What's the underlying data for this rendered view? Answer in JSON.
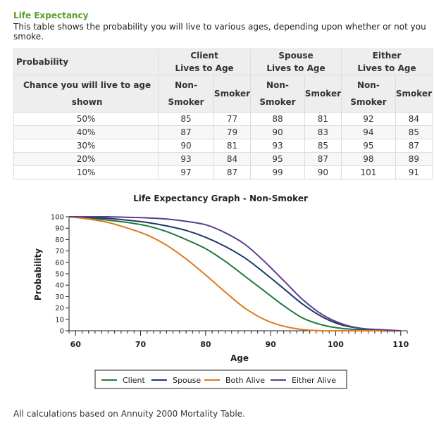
{
  "header": {
    "title": "Life Expectancy",
    "subtitle": "This table shows the probability you will live to various ages, depending upon whether or not you smoke."
  },
  "table": {
    "probability_header": "Probability",
    "chance_header_line1": "Chance you will live to age",
    "chance_header_line2": "shown",
    "groups": [
      {
        "line1": "Client",
        "line2": "Lives to Age"
      },
      {
        "line1": "Spouse",
        "line2": "Lives to Age"
      },
      {
        "line1": "Either",
        "line2": "Lives to Age"
      }
    ],
    "non_line1": "Non-",
    "non_line2": "Smoker",
    "smoker": "Smoker",
    "rows": [
      {
        "p": "50%",
        "v": [
          "85",
          "77",
          "88",
          "81",
          "92",
          "84"
        ]
      },
      {
        "p": "40%",
        "v": [
          "87",
          "79",
          "90",
          "83",
          "94",
          "85"
        ]
      },
      {
        "p": "30%",
        "v": [
          "90",
          "81",
          "93",
          "85",
          "95",
          "87"
        ]
      },
      {
        "p": "20%",
        "v": [
          "93",
          "84",
          "95",
          "87",
          "98",
          "89"
        ]
      },
      {
        "p": "10%",
        "v": [
          "97",
          "87",
          "99",
          "90",
          "101",
          "91"
        ]
      }
    ]
  },
  "chart_data": {
    "type": "line",
    "title": "Life Expectancy Graph - Non-Smoker",
    "xlabel": "Age",
    "ylabel": "Probability",
    "xlim": [
      59,
      111
    ],
    "ylim": [
      0,
      100
    ],
    "xticks": [
      60,
      70,
      80,
      90,
      100,
      110
    ],
    "yticks": [
      0,
      10,
      20,
      30,
      40,
      50,
      60,
      70,
      80,
      90,
      100
    ],
    "grid": false,
    "legend_position": "bottom",
    "x": [
      59,
      62,
      65,
      68,
      71,
      74,
      77,
      80,
      83,
      86,
      89,
      92,
      95,
      98,
      101,
      104,
      107,
      110
    ],
    "series": [
      {
        "name": "Client",
        "color": "#1e7b3c",
        "values": [
          100,
          99,
          97,
          95,
          92,
          87,
          80,
          72,
          61,
          48,
          35,
          22,
          11,
          5,
          2,
          1,
          0,
          0
        ]
      },
      {
        "name": "Spouse",
        "color": "#1b3a6b",
        "values": [
          100,
          99.5,
          98.5,
          97,
          95,
          92,
          88,
          82,
          74,
          64,
          51,
          37,
          23,
          12,
          5,
          2,
          0,
          0
        ]
      },
      {
        "name": "Both Alive",
        "color": "#e07a1f",
        "values": [
          100,
          98,
          95,
          90,
          84,
          75,
          63,
          49,
          34,
          20,
          10,
          4,
          1,
          0,
          0,
          0,
          0,
          0
        ]
      },
      {
        "name": "Either Alive",
        "color": "#5c3d8f",
        "values": [
          100,
          100,
          100,
          99.5,
          99,
          98,
          96,
          93,
          86,
          76,
          61,
          44,
          27,
          14,
          6,
          2,
          1,
          0
        ]
      }
    ]
  },
  "footer": {
    "text": "All calculations based on Annuity 2000 Mortality Table."
  }
}
